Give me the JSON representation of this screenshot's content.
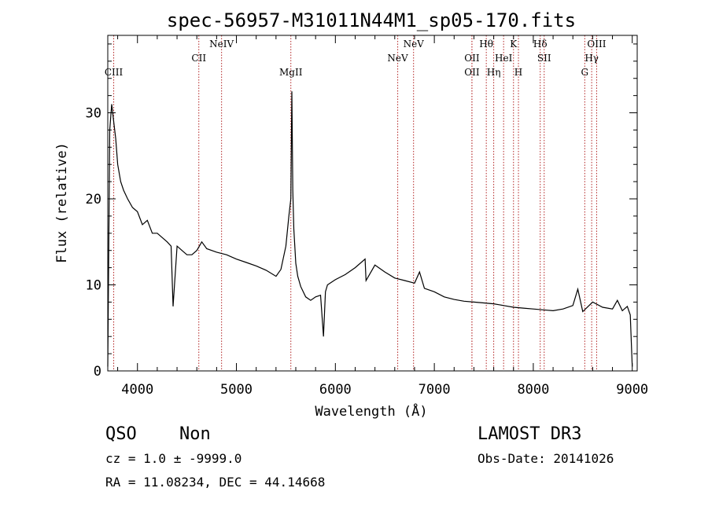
{
  "chart_data": {
    "type": "line",
    "title": "spec-56957-M31011N44M1_sp05-170.fits",
    "xlabel": "Wavelength (Å)",
    "ylabel": "Flux (relative)",
    "xlim": [
      3700,
      9050
    ],
    "ylim": [
      0,
      39
    ],
    "x_ticks": [
      4000,
      5000,
      6000,
      7000,
      8000,
      9000
    ],
    "y_ticks": [
      0,
      10,
      20,
      30
    ],
    "grid": false,
    "series": [
      {
        "x": [
          3700,
          3720,
          3740,
          3760,
          3780,
          3800,
          3830,
          3860,
          3900,
          3950,
          4000,
          4050,
          4100,
          4150,
          4200,
          4250,
          4300,
          4340,
          4360,
          4400,
          4450,
          4500,
          4550,
          4600,
          4650,
          4700,
          4800,
          4900,
          5000,
          5100,
          5200,
          5300,
          5400,
          5450,
          5500,
          5530,
          5550,
          5560,
          5570,
          5580,
          5600,
          5620,
          5650,
          5700,
          5750,
          5800,
          5850,
          5880,
          5900,
          5920,
          6000,
          6100,
          6200,
          6300,
          6310,
          6400,
          6500,
          6600,
          6700,
          6800,
          6850,
          6900,
          7000,
          7100,
          7200,
          7300,
          7400,
          7500,
          7600,
          7700,
          7800,
          7900,
          8000,
          8100,
          8200,
          8300,
          8400,
          8450,
          8500,
          8600,
          8700,
          8800,
          8850,
          8900,
          8950,
          8980,
          9000
        ],
        "y": [
          0.5,
          28,
          31,
          29,
          27,
          24,
          22,
          21,
          20,
          19,
          18.5,
          17,
          17.5,
          16,
          16,
          15.5,
          15,
          14.5,
          7.5,
          14.5,
          14,
          13.5,
          13.5,
          14,
          15,
          14.2,
          13.8,
          13.5,
          13,
          12.6,
          12.2,
          11.7,
          11,
          11.8,
          14.5,
          18,
          20,
          32.5,
          21,
          16.5,
          12.5,
          11,
          9.8,
          8.6,
          8.2,
          8.6,
          8.8,
          4,
          9.2,
          10,
          10.6,
          11.2,
          12,
          13,
          10.5,
          12.3,
          11.5,
          10.8,
          10.5,
          10.2,
          11.5,
          9.6,
          9.2,
          8.6,
          8.3,
          8.1,
          8,
          7.9,
          7.8,
          7.6,
          7.4,
          7.3,
          7.2,
          7.1,
          7,
          7.2,
          7.6,
          9.5,
          6.9,
          8,
          7.4,
          7.2,
          8.2,
          7,
          7.5,
          6.5,
          0.5
        ]
      }
    ],
    "line_markers": [
      {
        "label": "CIII",
        "x": 3760,
        "tier": 3
      },
      {
        "label": "CII",
        "x": 4620,
        "tier": 2
      },
      {
        "label": "NeIV",
        "x": 4850,
        "tier": 1
      },
      {
        "label": "MgII",
        "x": 5550,
        "tier": 3
      },
      {
        "label": "NeV",
        "x": 6630,
        "tier": 2
      },
      {
        "label": "NeV",
        "x": 6790,
        "tier": 1
      },
      {
        "label": "OII",
        "x": 7380,
        "tier": 2
      },
      {
        "label": "OII",
        "x": 7380,
        "tier": 3
      },
      {
        "label": "Hθ",
        "x": 7525,
        "tier": 1
      },
      {
        "label": "Hη",
        "x": 7600,
        "tier": 3
      },
      {
        "label": "HeI",
        "x": 7700,
        "tier": 2
      },
      {
        "label": "K",
        "x": 7800,
        "tier": 1
      },
      {
        "label": "H",
        "x": 7850,
        "tier": 3
      },
      {
        "label": "Hδ",
        "x": 8070,
        "tier": 1
      },
      {
        "label": "SII",
        "x": 8110,
        "tier": 2
      },
      {
        "label": "G",
        "x": 8520,
        "tier": 3
      },
      {
        "label": "OIII",
        "x": 8640,
        "tier": 1
      },
      {
        "label": "Hγ",
        "x": 8590,
        "tier": 2
      }
    ]
  },
  "info": {
    "object_class": "QSO",
    "subclass": "Non",
    "survey": "LAMOST DR3",
    "redshift_line": "cz = 1.0 ± -9999.0",
    "obs_date_line": "Obs-Date: 20141026",
    "coords_line": "RA =  11.08234, DEC =  44.14668"
  },
  "colors": {
    "spectrum": "#000000",
    "marker": "#b22222",
    "axes": "#000000",
    "background": "#ffffff"
  }
}
